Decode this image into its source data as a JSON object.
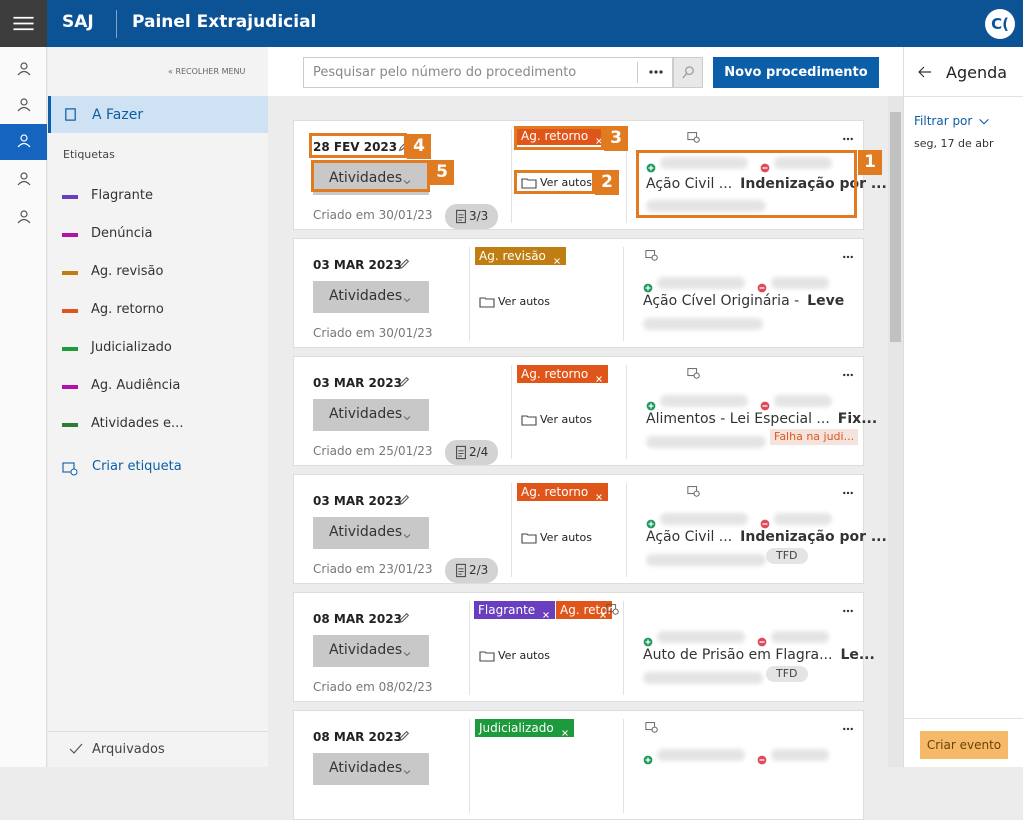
{
  "header": {
    "app": "SAJ",
    "title": "Painel Extrajudicial",
    "avatar": "C("
  },
  "sidebar": {
    "collapse": "« RECOLHER MENU",
    "selected": "A Fazer",
    "labels_title": "Etiquetas",
    "labels": [
      {
        "name": "Flagrante",
        "color": "#6a3fbf"
      },
      {
        "name": "Denúncia",
        "color": "#b311a8"
      },
      {
        "name": "Ag. revisão",
        "color": "#c07d11"
      },
      {
        "name": "Ag. retorno",
        "color": "#e0561a"
      },
      {
        "name": "Judicializado",
        "color": "#1d9a3c"
      },
      {
        "name": "Ag. Audiência",
        "color": "#b311a8"
      },
      {
        "name": "Atividades e...",
        "color": "#2e7d32"
      }
    ],
    "create_label": "Criar etiqueta",
    "archived": "Arquivados"
  },
  "toolbar": {
    "search_placeholder": "Pesquisar pelo número do procedimento",
    "new_button": "Novo procedimento"
  },
  "cards": [
    {
      "date": "28 FEV 2023",
      "activities": "Atividades",
      "created": "Criado em 30/01/23",
      "count": "3/3",
      "tags": [
        {
          "name": "Ag. retorno",
          "color": "#e0561a"
        }
      ],
      "view": "Ver autos",
      "title": "Ação Civil ...",
      "subtitle": "Indenização por ..."
    },
    {
      "date": "03 MAR 2023",
      "activities": "Atividades",
      "created": "Criado em 30/01/23",
      "tags": [
        {
          "name": "Ag. revisão",
          "color": "#c07d11"
        }
      ],
      "view": "Ver autos",
      "title": "Ação Cível Originária -",
      "subtitle": "Leve"
    },
    {
      "date": "03 MAR 2023",
      "activities": "Atividades",
      "created": "Criado em 25/01/23",
      "count": "2/4",
      "tags": [
        {
          "name": "Ag. retorno",
          "color": "#e0561a"
        }
      ],
      "view": "Ver autos",
      "title": "Alimentos - Lei Especial ...",
      "subtitle": "Fix...",
      "badge": "Falha na judi..."
    },
    {
      "date": "03 MAR 2023",
      "activities": "Atividades",
      "created": "Criado em 23/01/23",
      "count": "2/3",
      "tags": [
        {
          "name": "Ag. retorno",
          "color": "#e0561a"
        }
      ],
      "view": "Ver autos",
      "title": "Ação Civil ...",
      "subtitle": "Indenização por ...",
      "badge": "TFD"
    },
    {
      "date": "08 MAR 2023",
      "activities": "Atividades",
      "created": "Criado em 08/02/23",
      "tags": [
        {
          "name": "Flagrante",
          "color": "#6a3fbf"
        },
        {
          "name": "Ag. retor",
          "color": "#e0561a"
        }
      ],
      "view": "Ver autos",
      "title": "Auto de Prisão em Flagra...",
      "subtitle": "Le...",
      "badge": "TFD"
    },
    {
      "date": "08 MAR 2023",
      "activities": "Atividades",
      "tags": [
        {
          "name": "Judicializado",
          "color": "#1d9a3c"
        }
      ]
    }
  ],
  "agenda": {
    "title": "Agenda",
    "filter": "Filtrar por",
    "date": "seg, 17 de abr",
    "create": "Criar evento"
  },
  "annotations": [
    "1",
    "2",
    "3",
    "4",
    "5"
  ]
}
